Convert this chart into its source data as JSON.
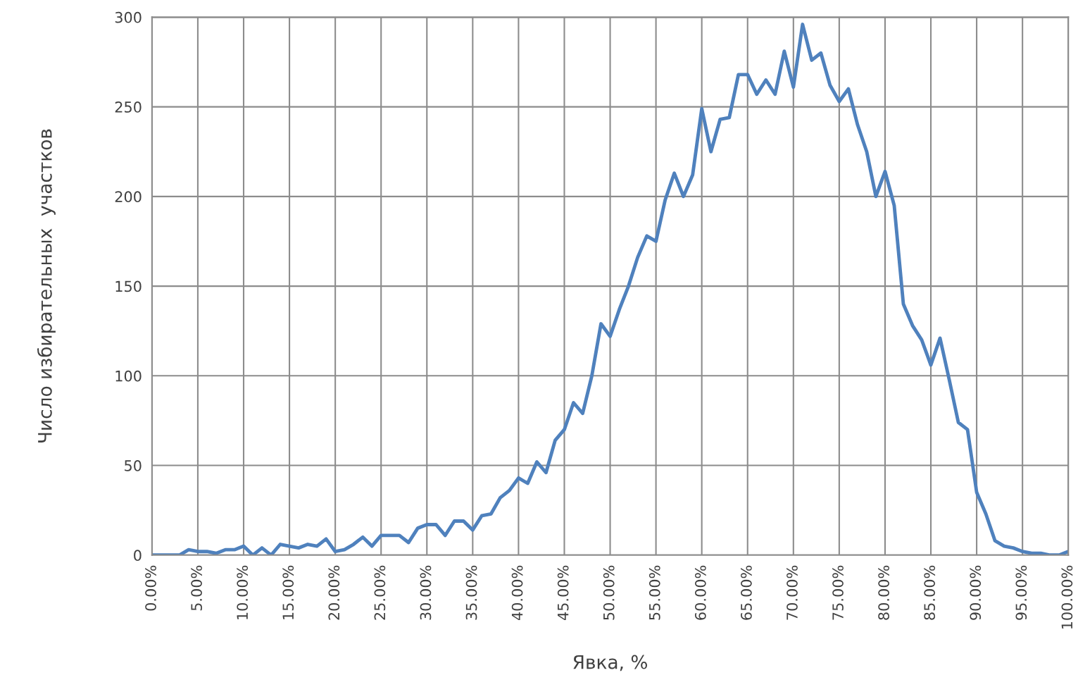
{
  "chart_data": {
    "type": "line",
    "xlabel": "Явка, %",
    "ylabel": "Число избирательных  участков",
    "x": [
      0,
      1,
      2,
      3,
      4,
      5,
      6,
      7,
      8,
      9,
      10,
      11,
      12,
      13,
      14,
      15,
      16,
      17,
      18,
      19,
      20,
      21,
      22,
      23,
      24,
      25,
      26,
      27,
      28,
      29,
      30,
      31,
      32,
      33,
      34,
      35,
      36,
      37,
      38,
      39,
      40,
      41,
      42,
      43,
      44,
      45,
      46,
      47,
      48,
      49,
      50,
      51,
      52,
      53,
      54,
      55,
      56,
      57,
      58,
      59,
      60,
      61,
      62,
      63,
      64,
      65,
      66,
      67,
      68,
      69,
      70,
      71,
      72,
      73,
      74,
      75,
      76,
      77,
      78,
      79,
      80,
      81,
      82,
      83,
      84,
      85,
      86,
      87,
      88,
      89,
      90,
      91,
      92,
      93,
      94,
      95,
      96,
      97,
      98,
      99,
      100
    ],
    "series": [
      {
        "color": "#4f81bd",
        "values": [
          0,
          0,
          0,
          0,
          3,
          2,
          2,
          1,
          3,
          3,
          5,
          0,
          4,
          0,
          6,
          5,
          4,
          6,
          5,
          9,
          2,
          3,
          6,
          10,
          5,
          11,
          11,
          11,
          7,
          15,
          17,
          17,
          11,
          19,
          19,
          14,
          22,
          23,
          32,
          36,
          43,
          40,
          52,
          46,
          64,
          70,
          85,
          79,
          100,
          129,
          122,
          137,
          150,
          166,
          178,
          175,
          198,
          213,
          200,
          212,
          249,
          225,
          243,
          244,
          268,
          268,
          257,
          265,
          257,
          281,
          261,
          296,
          276,
          280,
          262,
          253,
          260,
          240,
          225,
          200,
          214,
          195,
          140,
          128,
          120,
          106,
          121,
          98,
          74,
          70,
          35,
          23,
          8,
          5,
          4,
          2,
          1,
          1,
          0,
          0,
          2
        ]
      }
    ],
    "xlim": [
      0,
      100
    ],
    "xticks": [
      {
        "value": 0,
        "label": "0.00%"
      },
      {
        "value": 5,
        "label": "5.00%"
      },
      {
        "value": 10,
        "label": "10.00%"
      },
      {
        "value": 15,
        "label": "15.00%"
      },
      {
        "value": 20,
        "label": "20.00%"
      },
      {
        "value": 25,
        "label": "25.00%"
      },
      {
        "value": 30,
        "label": "30.00%"
      },
      {
        "value": 35,
        "label": "35.00%"
      },
      {
        "value": 40,
        "label": "40.00%"
      },
      {
        "value": 45,
        "label": "45.00%"
      },
      {
        "value": 50,
        "label": "50.00%"
      },
      {
        "value": 55,
        "label": "55.00%"
      },
      {
        "value": 60,
        "label": "60.00%"
      },
      {
        "value": 65,
        "label": "65.00%"
      },
      {
        "value": 70,
        "label": "70.00%"
      },
      {
        "value": 75,
        "label": "75.00%"
      },
      {
        "value": 80,
        "label": "80.00%"
      },
      {
        "value": 85,
        "label": "85.00%"
      },
      {
        "value": 90,
        "label": "90.00%"
      },
      {
        "value": 95,
        "label": "95.00%"
      },
      {
        "value": 100,
        "label": "100.00%"
      }
    ],
    "ylim": [
      0,
      300
    ],
    "yticks": [
      0,
      50,
      100,
      150,
      200,
      250,
      300
    ],
    "grid": true,
    "marker": "none",
    "line_style": "solid"
  }
}
